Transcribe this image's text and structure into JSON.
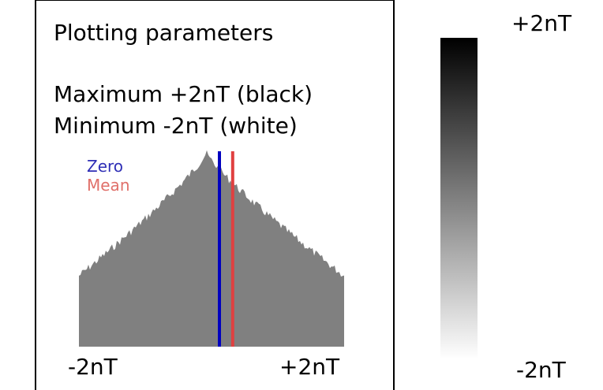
{
  "panel": {
    "heading": "Plotting parameters",
    "maximum_text": "Maximum +2nT (black)",
    "minimum_text": "Minimum -2nT (white)"
  },
  "histogram": {
    "legend_zero": "Zero",
    "legend_mean": "Mean",
    "x_min_label": "-2nT",
    "x_max_label": "+2nT",
    "x_min": -2,
    "x_max": 2,
    "zero_value": 0,
    "mean_value": 0.2,
    "bar_color": "#808080",
    "zero_color": "#0000c0",
    "mean_color": "#e04040"
  },
  "scale": {
    "top_label": "+2nT",
    "bottom_label": "-2nT",
    "top_color": "#000000",
    "bottom_color": "#ffffff"
  }
}
